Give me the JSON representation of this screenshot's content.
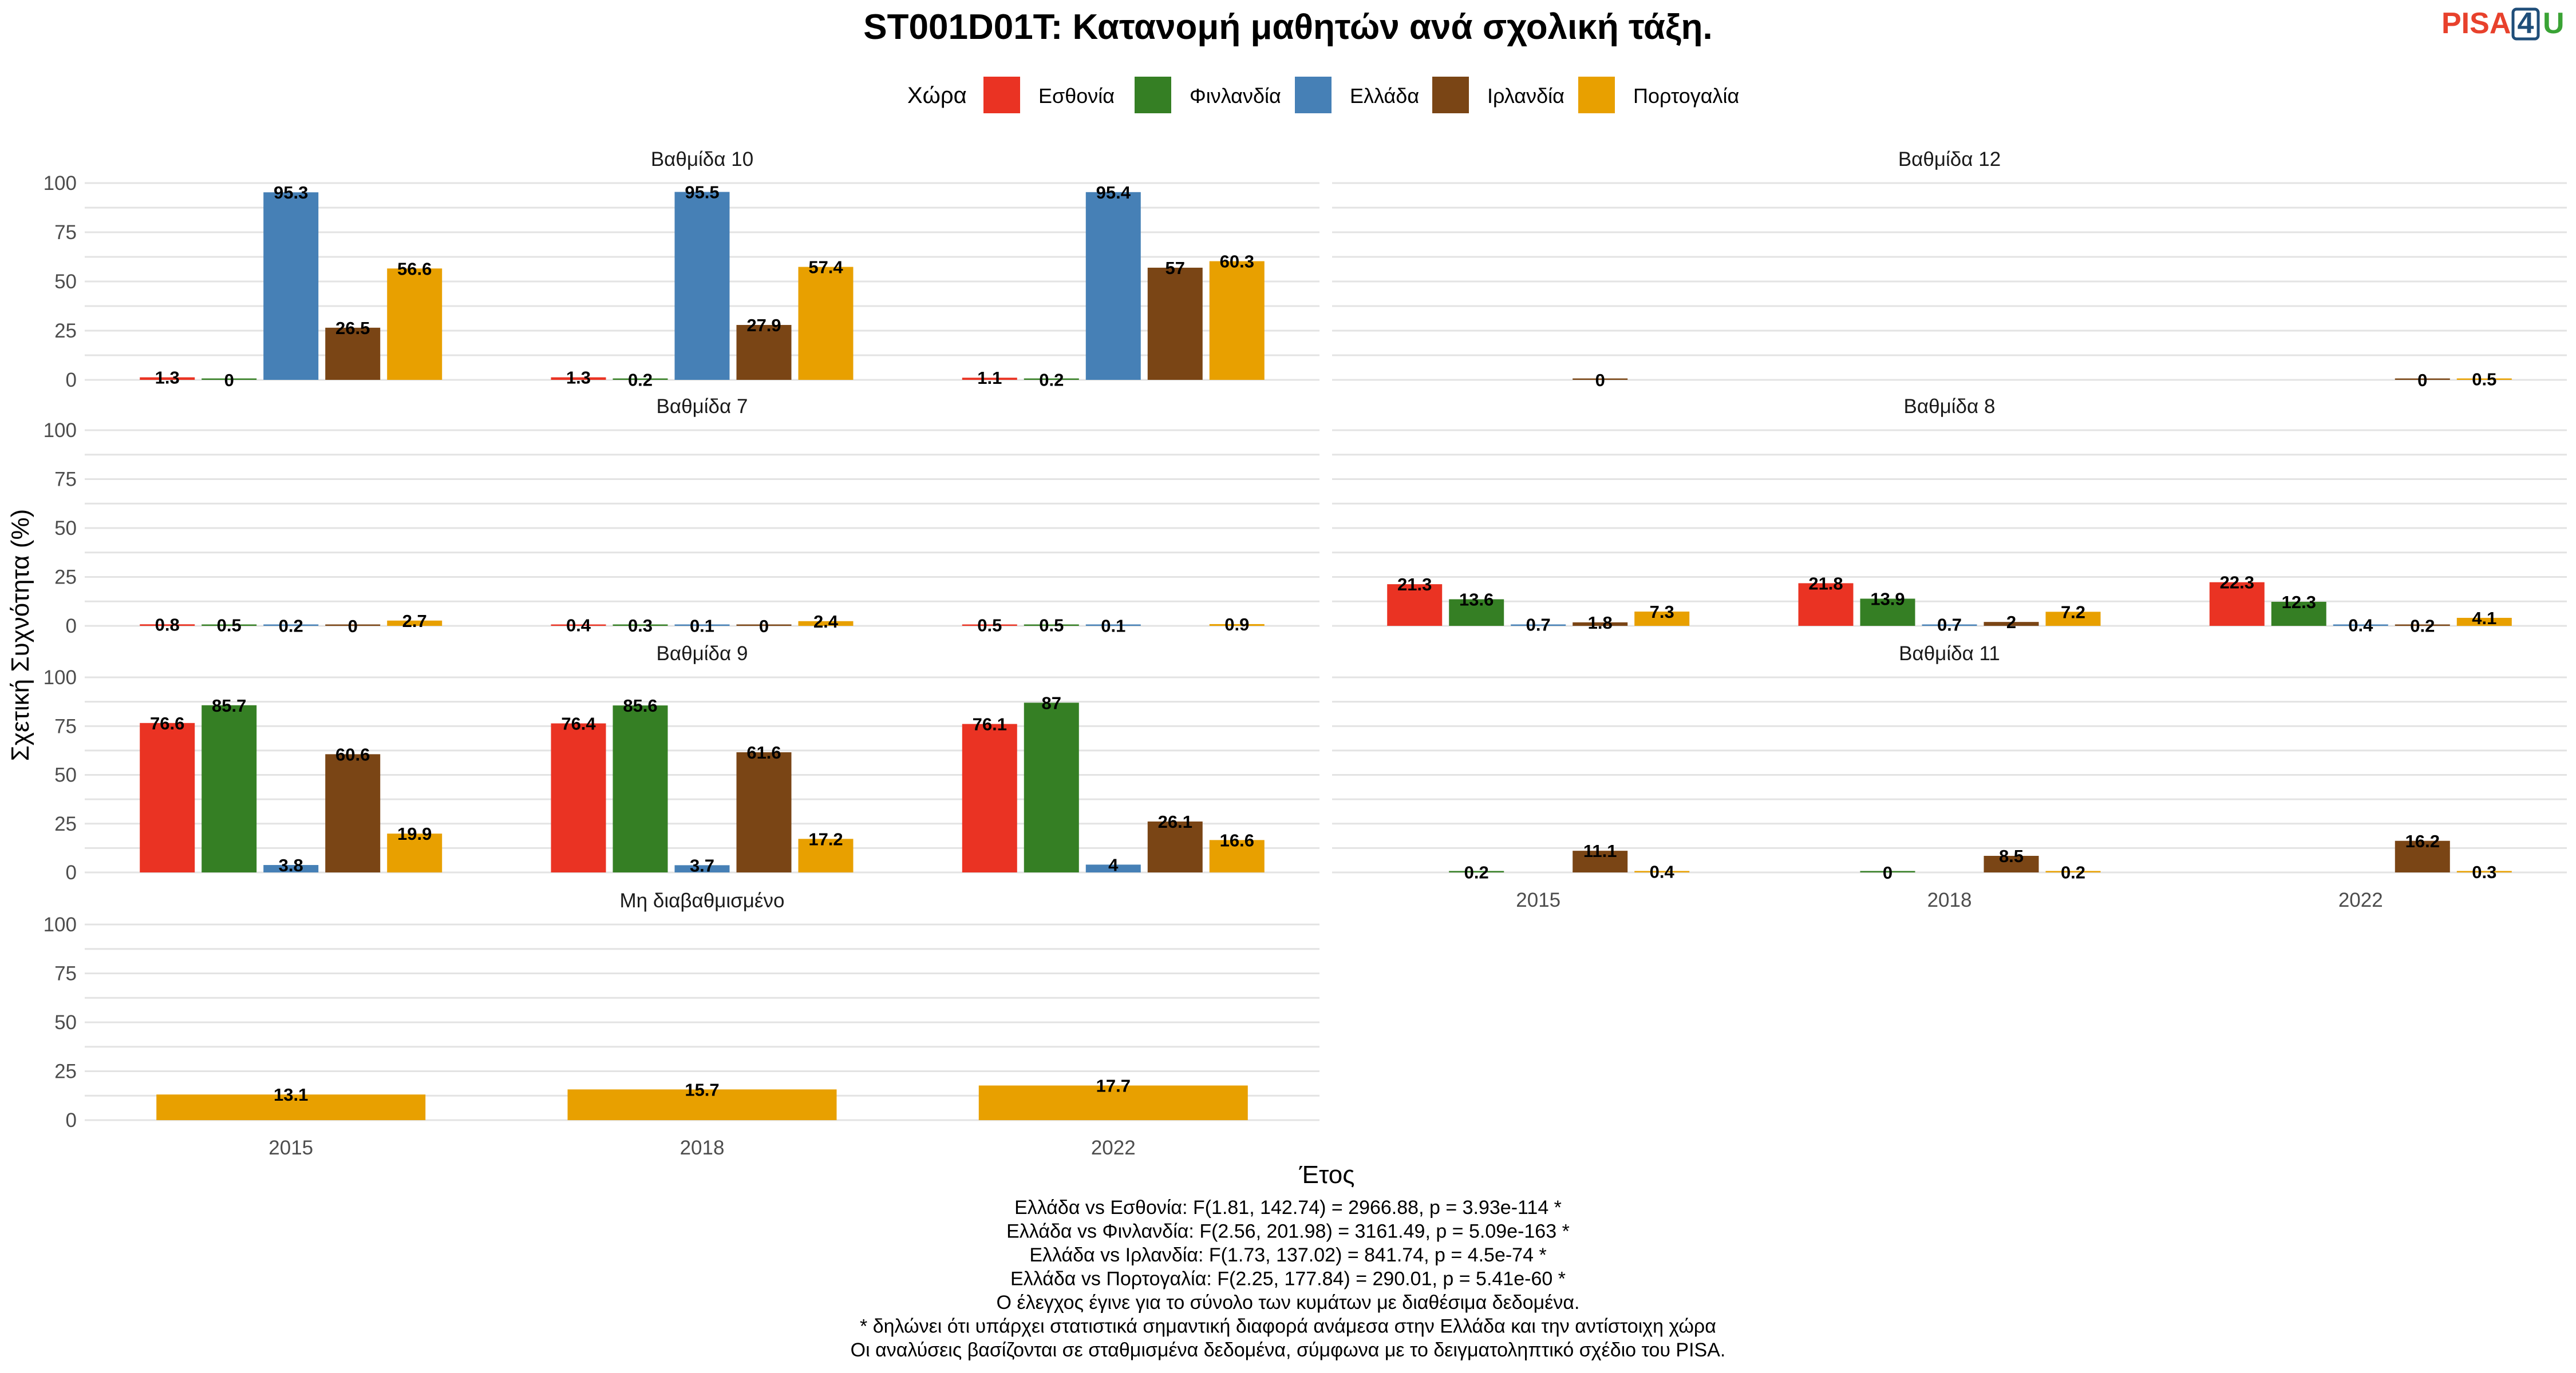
{
  "logo": {
    "part1": "PISA",
    "part2": "4",
    "part3": "U",
    "color1": "#e8412c",
    "color2": "#1f4e79",
    "color3": "#3aa335"
  },
  "chart_data": {
    "type": "bar",
    "title": "ST001D01T: Κατανομή μαθητών ανά σχολική τάξη.",
    "xlabel": "Έτος",
    "ylabel": "Σχετική Συχνότητα (%)",
    "ylim": [
      0,
      100
    ],
    "yticks": [
      "0",
      "25",
      "50",
      "75",
      "100"
    ],
    "years": [
      "2015",
      "2018",
      "2022"
    ],
    "legend": {
      "title": "Χώρα",
      "position": "top",
      "entries": [
        {
          "name": "Εσθονία",
          "color": "#ea3323"
        },
        {
          "name": "Φινλανδία",
          "color": "#357f24"
        },
        {
          "name": "Ελλάδα",
          "color": "#4680b6"
        },
        {
          "name": "Ιρλανδία",
          "color": "#7a4515"
        },
        {
          "name": "Πορτογαλία",
          "color": "#e8a000"
        }
      ]
    },
    "grid": true,
    "panels": [
      {
        "label": "Βαθμίδα 10",
        "groups": [
          {
            "year": "2015",
            "bars": [
              {
                "country": "Εσθονία",
                "value": 1.3,
                "label": "1.3"
              },
              {
                "country": "Φινλανδία",
                "value": 0,
                "label": "0"
              },
              {
                "country": "Ελλάδα",
                "value": 95.3,
                "label": "95.3"
              },
              {
                "country": "Ιρλανδία",
                "value": 26.5,
                "label": "26.5"
              },
              {
                "country": "Πορτογαλία",
                "value": 56.6,
                "label": "56.6"
              }
            ]
          },
          {
            "year": "2018",
            "bars": [
              {
                "country": "Εσθονία",
                "value": 1.3,
                "label": "1.3"
              },
              {
                "country": "Φινλανδία",
                "value": 0.2,
                "label": "0.2"
              },
              {
                "country": "Ελλάδα",
                "value": 95.5,
                "label": "95.5"
              },
              {
                "country": "Ιρλανδία",
                "value": 27.9,
                "label": "27.9"
              },
              {
                "country": "Πορτογαλία",
                "value": 57.4,
                "label": "57.4"
              }
            ]
          },
          {
            "year": "2022",
            "bars": [
              {
                "country": "Εσθονία",
                "value": 1.1,
                "label": "1.1"
              },
              {
                "country": "Φινλανδία",
                "value": 0.2,
                "label": "0.2"
              },
              {
                "country": "Ελλάδα",
                "value": 95.4,
                "label": "95.4"
              },
              {
                "country": "Ιρλανδία",
                "value": 57,
                "label": "57"
              },
              {
                "country": "Πορτογαλία",
                "value": 60.3,
                "label": "60.3"
              }
            ]
          }
        ]
      },
      {
        "label": "Βαθμίδα 12",
        "groups": [
          {
            "year": "2015",
            "bars": [
              {
                "country": "Ιρλανδία",
                "value": 0,
                "label": "0"
              }
            ]
          },
          {
            "year": "2018",
            "bars": []
          },
          {
            "year": "2022",
            "bars": [
              {
                "country": "Ιρλανδία",
                "value": 0,
                "label": "0"
              },
              {
                "country": "Πορτογαλία",
                "value": 0.5,
                "label": "0.5"
              }
            ]
          }
        ]
      },
      {
        "label": "Βαθμίδα 7",
        "groups": [
          {
            "year": "2015",
            "bars": [
              {
                "country": "Εσθονία",
                "value": 0.8,
                "label": "0.8"
              },
              {
                "country": "Φινλανδία",
                "value": 0.5,
                "label": "0.5"
              },
              {
                "country": "Ελλάδα",
                "value": 0.2,
                "label": "0.2"
              },
              {
                "country": "Ιρλανδία",
                "value": 0,
                "label": "0"
              },
              {
                "country": "Πορτογαλία",
                "value": 2.7,
                "label": "2.7"
              }
            ]
          },
          {
            "year": "2018",
            "bars": [
              {
                "country": "Εσθονία",
                "value": 0.4,
                "label": "0.4"
              },
              {
                "country": "Φινλανδία",
                "value": 0.3,
                "label": "0.3"
              },
              {
                "country": "Ελλάδα",
                "value": 0.1,
                "label": "0.1"
              },
              {
                "country": "Ιρλανδία",
                "value": 0,
                "label": "0"
              },
              {
                "country": "Πορτογαλία",
                "value": 2.4,
                "label": "2.4"
              }
            ]
          },
          {
            "year": "2022",
            "bars": [
              {
                "country": "Εσθονία",
                "value": 0.5,
                "label": "0.5"
              },
              {
                "country": "Φινλανδία",
                "value": 0.5,
                "label": "0.5"
              },
              {
                "country": "Ελλάδα",
                "value": 0.1,
                "label": "0.1"
              },
              {
                "country": "Πορτογαλία",
                "value": 0.9,
                "label": "0.9"
              }
            ]
          }
        ]
      },
      {
        "label": "Βαθμίδα 8",
        "groups": [
          {
            "year": "2015",
            "bars": [
              {
                "country": "Εσθονία",
                "value": 21.3,
                "label": "21.3"
              },
              {
                "country": "Φινλανδία",
                "value": 13.6,
                "label": "13.6"
              },
              {
                "country": "Ελλάδα",
                "value": 0.7,
                "label": "0.7"
              },
              {
                "country": "Ιρλανδία",
                "value": 1.8,
                "label": "1.8"
              },
              {
                "country": "Πορτογαλία",
                "value": 7.3,
                "label": "7.3"
              }
            ]
          },
          {
            "year": "2018",
            "bars": [
              {
                "country": "Εσθονία",
                "value": 21.8,
                "label": "21.8"
              },
              {
                "country": "Φινλανδία",
                "value": 13.9,
                "label": "13.9"
              },
              {
                "country": "Ελλάδα",
                "value": 0.7,
                "label": "0.7"
              },
              {
                "country": "Ιρλανδία",
                "value": 2,
                "label": "2"
              },
              {
                "country": "Πορτογαλία",
                "value": 7.2,
                "label": "7.2"
              }
            ]
          },
          {
            "year": "2022",
            "bars": [
              {
                "country": "Εσθονία",
                "value": 22.3,
                "label": "22.3"
              },
              {
                "country": "Φινλανδία",
                "value": 12.3,
                "label": "12.3"
              },
              {
                "country": "Ελλάδα",
                "value": 0.4,
                "label": "0.4"
              },
              {
                "country": "Ιρλανδία",
                "value": 0.2,
                "label": "0.2"
              },
              {
                "country": "Πορτογαλία",
                "value": 4.1,
                "label": "4.1"
              }
            ]
          }
        ]
      },
      {
        "label": "Βαθμίδα 9",
        "groups": [
          {
            "year": "2015",
            "bars": [
              {
                "country": "Εσθονία",
                "value": 76.6,
                "label": "76.6"
              },
              {
                "country": "Φινλανδία",
                "value": 85.7,
                "label": "85.7"
              },
              {
                "country": "Ελλάδα",
                "value": 3.8,
                "label": "3.8"
              },
              {
                "country": "Ιρλανδία",
                "value": 60.6,
                "label": "60.6"
              },
              {
                "country": "Πορτογαλία",
                "value": 19.9,
                "label": "19.9"
              }
            ]
          },
          {
            "year": "2018",
            "bars": [
              {
                "country": "Εσθονία",
                "value": 76.4,
                "label": "76.4"
              },
              {
                "country": "Φινλανδία",
                "value": 85.6,
                "label": "85.6"
              },
              {
                "country": "Ελλάδα",
                "value": 3.7,
                "label": "3.7"
              },
              {
                "country": "Ιρλανδία",
                "value": 61.6,
                "label": "61.6"
              },
              {
                "country": "Πορτογαλία",
                "value": 17.2,
                "label": "17.2"
              }
            ]
          },
          {
            "year": "2022",
            "bars": [
              {
                "country": "Εσθονία",
                "value": 76.1,
                "label": "76.1"
              },
              {
                "country": "Φινλανδία",
                "value": 87,
                "label": "87"
              },
              {
                "country": "Ελλάδα",
                "value": 4,
                "label": "4"
              },
              {
                "country": "Ιρλανδία",
                "value": 26.1,
                "label": "26.1"
              },
              {
                "country": "Πορτογαλία",
                "value": 16.6,
                "label": "16.6"
              }
            ]
          }
        ]
      },
      {
        "label": "Βαθμίδα 11",
        "groups": [
          {
            "year": "2015",
            "bars": [
              {
                "country": "Φινλανδία",
                "value": 0.2,
                "label": "0.2"
              },
              {
                "country": "Ιρλανδία",
                "value": 11.1,
                "label": "11.1"
              },
              {
                "country": "Πορτογαλία",
                "value": 0.4,
                "label": "0.4"
              }
            ]
          },
          {
            "year": "2018",
            "bars": [
              {
                "country": "Φινλανδία",
                "value": 0,
                "label": "0"
              },
              {
                "country": "Ιρλανδία",
                "value": 8.5,
                "label": "8.5"
              },
              {
                "country": "Πορτογαλία",
                "value": 0.2,
                "label": "0.2"
              }
            ]
          },
          {
            "year": "2022",
            "bars": [
              {
                "country": "Ιρλανδία",
                "value": 16.2,
                "label": "16.2"
              },
              {
                "country": "Πορτογαλία",
                "value": 0.3,
                "label": "0.3"
              }
            ]
          }
        ]
      },
      {
        "label": "Μη διαβαθμισμένο",
        "groups": [
          {
            "year": "2015",
            "bars": [
              {
                "country": "Πορτογαλία",
                "value": 13.1,
                "label": "13.1"
              }
            ]
          },
          {
            "year": "2018",
            "bars": [
              {
                "country": "Πορτογαλία",
                "value": 15.7,
                "label": "15.7"
              }
            ]
          },
          {
            "year": "2022",
            "bars": [
              {
                "country": "Πορτογαλία",
                "value": 17.7,
                "label": "17.7"
              }
            ]
          }
        ]
      }
    ],
    "caption_lines": [
      "Ελλάδα vs Εσθονία: F(1.81, 142.74) = 2966.88, p = 3.93e-114 *",
      "Ελλάδα vs Φινλανδία: F(2.56, 201.98) = 3161.49, p = 5.09e-163 *",
      "Ελλάδα vs Ιρλανδία: F(1.73, 137.02) = 841.74, p = 4.5e-74 *",
      "Ελλάδα vs Πορτογαλία: F(2.25, 177.84) = 290.01, p = 5.41e-60 *",
      "Ο έλεγχος έγινε για το σύνολο των κυμάτων με διαθέσιμα δεδομένα.",
      "* δηλώνει ότι υπάρχει στατιστικά σημαντική διαφορά ανάμεσα στην Ελλάδα και την αντίστοιχη χώρα",
      "Οι αναλύσεις βασίζονται σε σταθμισμένα δεδομένα, σύμφωνα με το δειγματοληπτικό σχέδιο του PISA."
    ]
  }
}
